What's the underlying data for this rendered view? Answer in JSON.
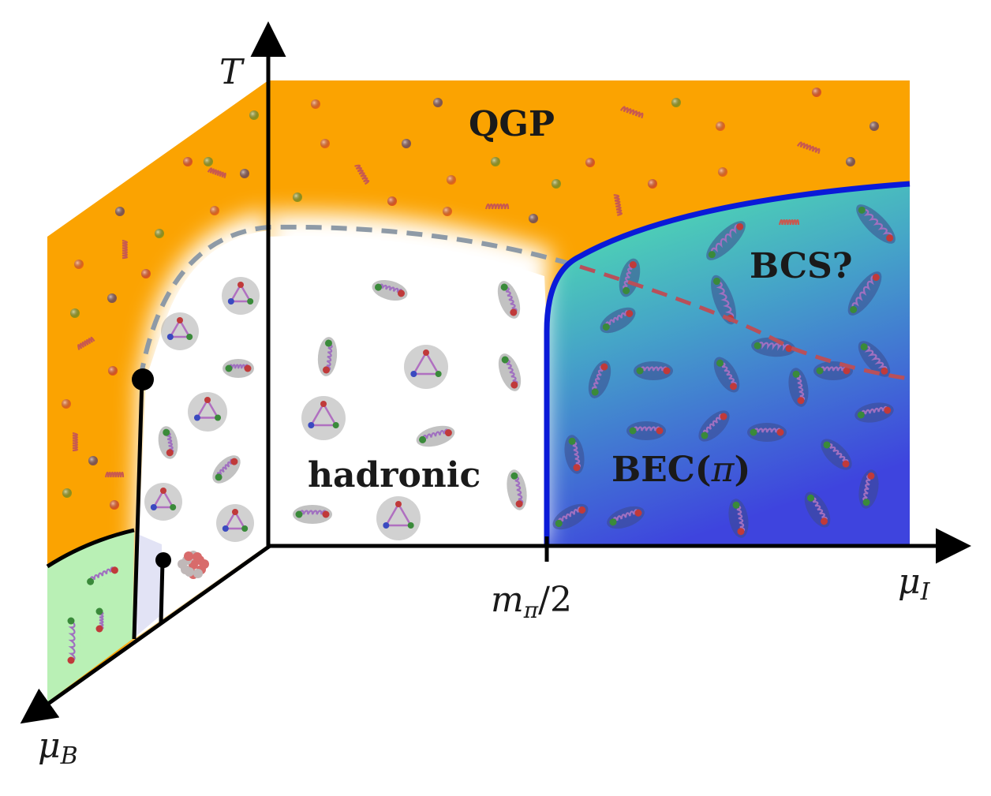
{
  "axes": {
    "temperature": "T",
    "isospin": "μ",
    "isospin_sub": "I",
    "baryon": "μ",
    "baryon_sub": "B",
    "tick_main": "m",
    "tick_sub": "π",
    "tick_tail": "/2"
  },
  "regions": {
    "qgp": "QGP",
    "bcs": "BCS?",
    "hadronic": "hadronic",
    "bec_main": "BEC(",
    "bec_symbol": "π",
    "bec_close": ")"
  },
  "colors": {
    "qgp": "#fba301",
    "bec_top": "#4fe6a6",
    "bec_bottom": "#3f48e0",
    "phase_boundary": "#0a1ad8",
    "crossover": "#8e9aa6",
    "bcs_crossover": "#b8505a",
    "nuclear_phase": "#b9f0b5",
    "nuclear_pocket": "#e2e3f5"
  }
}
